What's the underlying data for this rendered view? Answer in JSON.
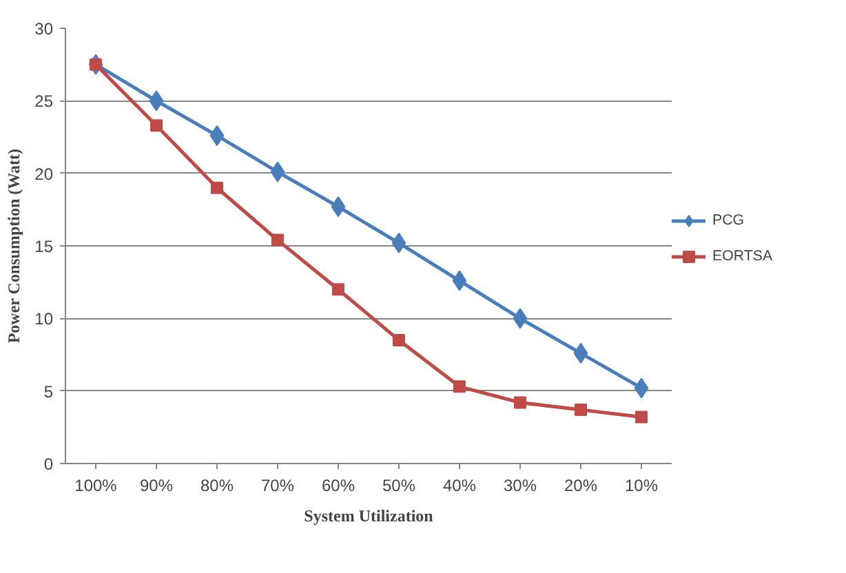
{
  "chart_data": {
    "type": "line",
    "xlabel": "System Utilization",
    "ylabel": "Power Consumption (Watt)",
    "categories": [
      "100%",
      "90%",
      "80%",
      "70%",
      "60%",
      "50%",
      "40%",
      "30%",
      "20%",
      "10%"
    ],
    "series": [
      {
        "name": "PCG",
        "color": "#4a7ebb",
        "marker": "diamond",
        "values": [
          27.5,
          25.0,
          22.6,
          20.1,
          17.7,
          15.2,
          12.6,
          10.0,
          7.6,
          5.2
        ]
      },
      {
        "name": "EORTSA",
        "color": "#be4b48",
        "marker": "square",
        "values": [
          27.5,
          23.3,
          19.0,
          15.4,
          12.0,
          8.5,
          5.3,
          4.2,
          3.7,
          3.2
        ]
      }
    ],
    "ylim": [
      0,
      30
    ],
    "yticks": [
      0,
      5,
      10,
      15,
      20,
      25,
      30
    ],
    "grid": "y",
    "legend": "right",
    "line_style": "solid"
  }
}
